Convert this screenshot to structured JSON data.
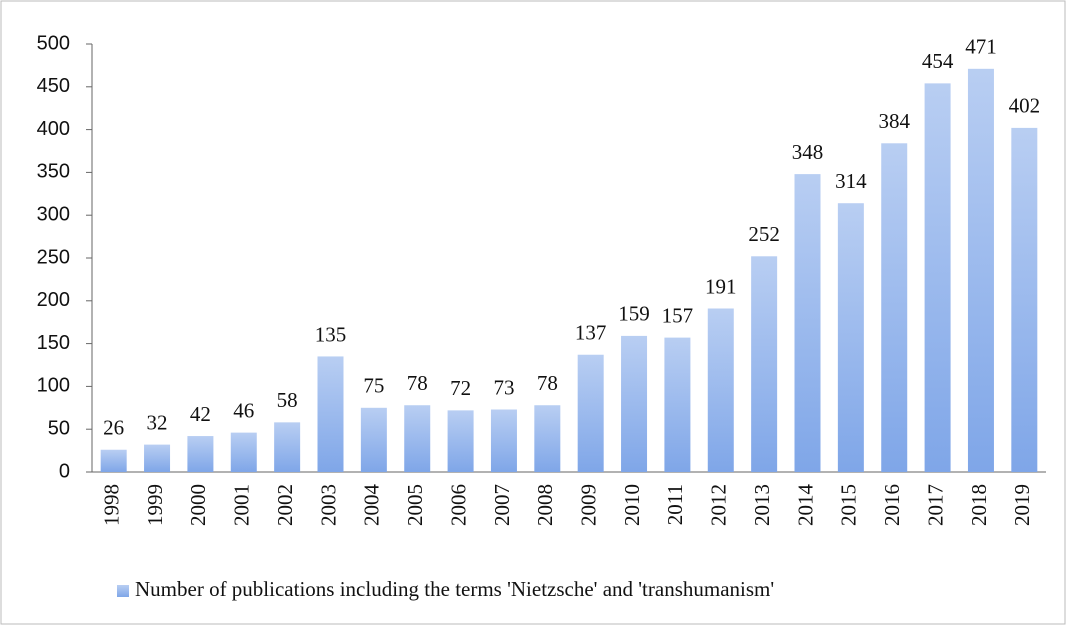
{
  "chart_data": {
    "type": "bar",
    "categories": [
      "1998",
      "1999",
      "2000",
      "2001",
      "2002",
      "2003",
      "2004",
      "2005",
      "2006",
      "2007",
      "2008",
      "2009",
      "2010",
      "2011",
      "2012",
      "2013",
      "2014",
      "2015",
      "2016",
      "2017",
      "2018",
      "2019"
    ],
    "series": [
      {
        "name": "Number of publications including the terms 'Nietzsche' and 'transhumanism'",
        "color": "#7fa6e8",
        "values": [
          26,
          32,
          42,
          46,
          58,
          135,
          75,
          78,
          72,
          73,
          78,
          137,
          159,
          157,
          191,
          252,
          348,
          314,
          384,
          454,
          471,
          402
        ]
      }
    ],
    "ylim": [
      0,
      500
    ],
    "yticks": [
      0,
      50,
      100,
      150,
      200,
      250,
      300,
      350,
      400,
      450,
      500
    ],
    "grid": false,
    "legend": "bottom"
  }
}
